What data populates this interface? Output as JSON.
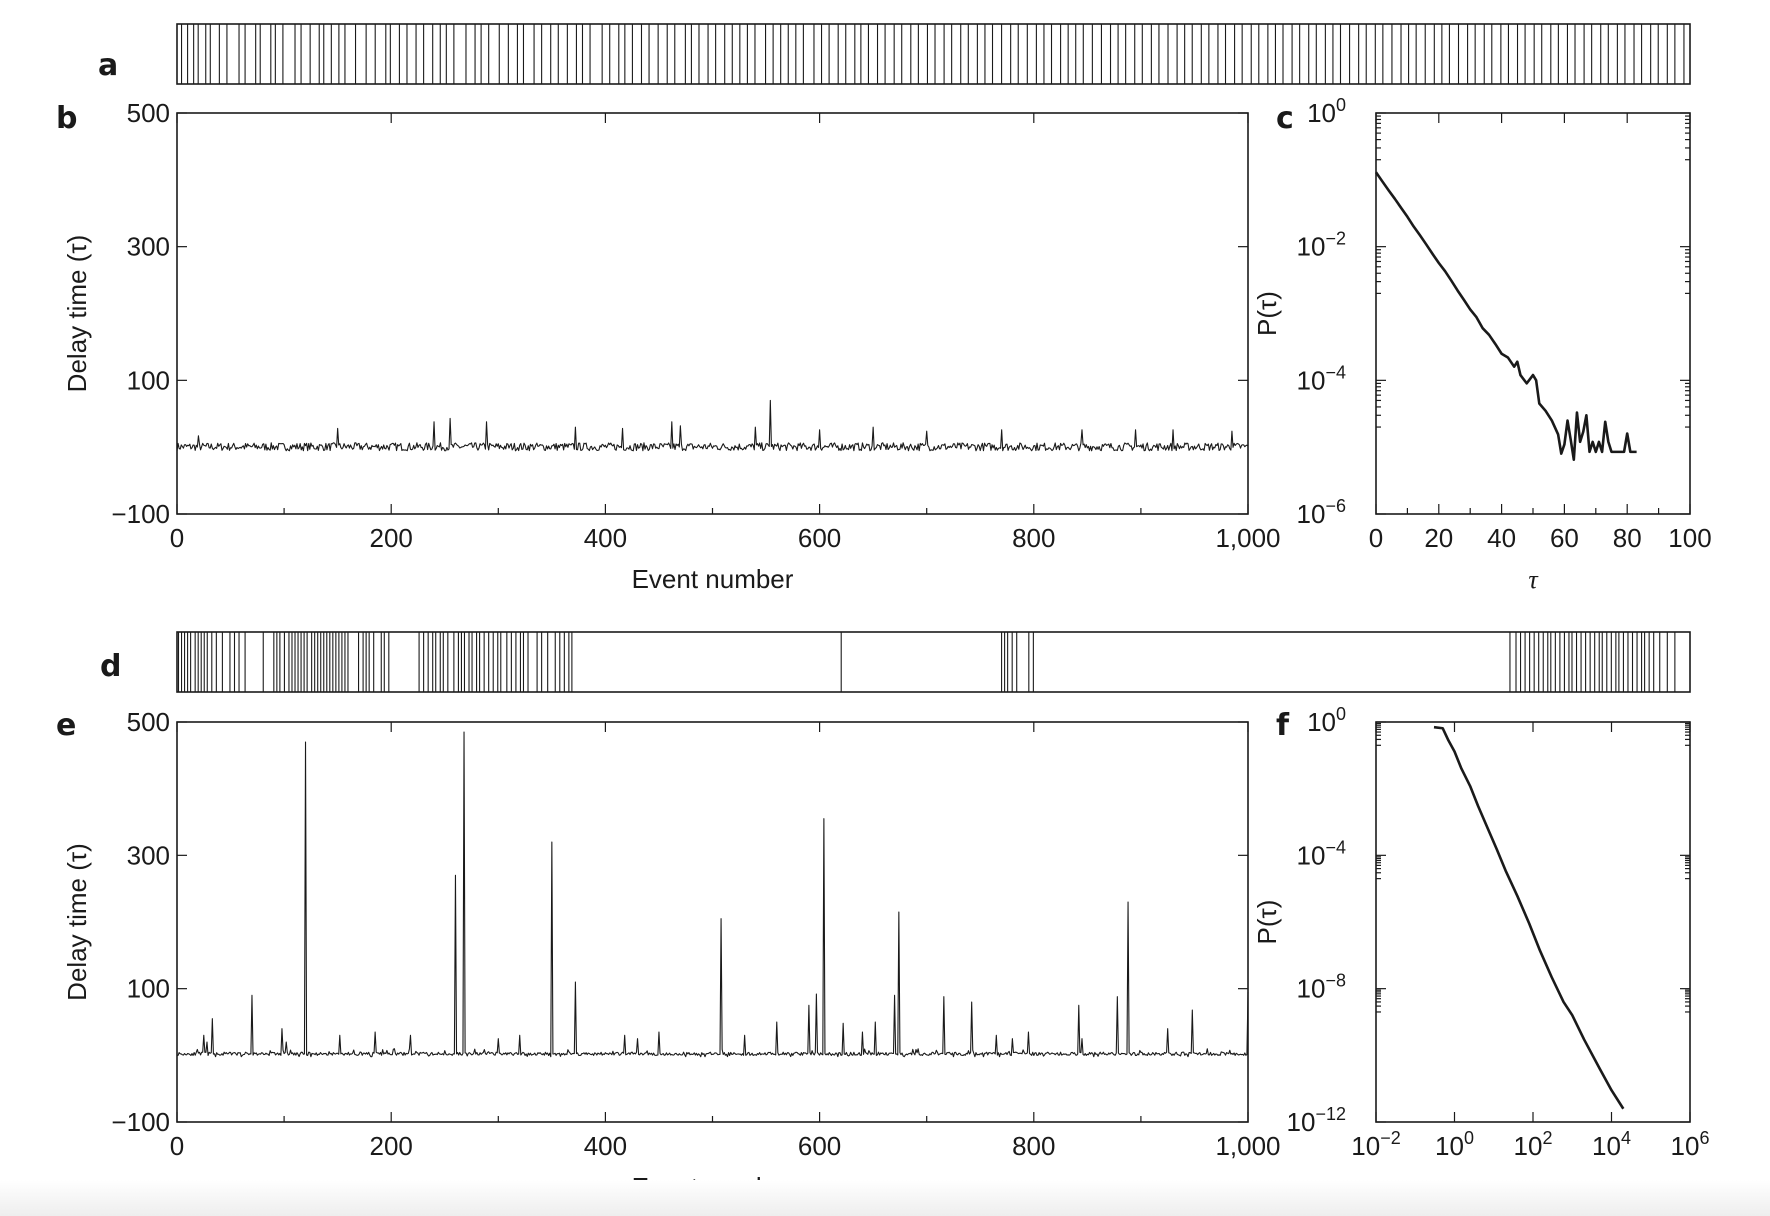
{
  "panels": {
    "a": "a",
    "b": "b",
    "c": "c",
    "d": "d",
    "e": "e",
    "f": "f"
  },
  "chart_data": [
    {
      "id": "a",
      "type": "event_raster",
      "xlim": [
        0,
        1000
      ],
      "events": [
        3,
        7,
        11,
        14,
        19,
        22,
        28,
        33,
        41,
        45,
        52,
        55,
        62,
        65,
        70,
        78,
        82,
        88,
        94,
        97,
        102,
        107,
        111,
        118,
        125,
        131,
        138,
        141,
        147,
        152,
        158,
        163,
        169,
        174,
        178,
        183,
        191,
        197,
        201,
        206,
        213,
        219,
        225,
        229,
        236,
        241,
        247,
        252,
        258,
        264,
        268,
        273,
        281,
        286,
        292,
        296,
        301,
        307,
        312,
        318,
        324,
        329,
        336,
        340,
        345,
        351,
        356,
        362,
        367,
        372,
        377,
        382,
        389,
        394,
        399,
        404,
        409,
        414,
        421,
        426,
        431,
        437,
        442,
        448,
        452,
        457,
        463,
        468,
        474,
        479,
        485,
        490,
        496,
        501,
        507,
        512,
        518,
        523,
        529,
        534,
        539,
        545,
        551,
        556,
        562,
        568,
        573,
        578,
        584,
        589,
        594,
        599,
        605,
        611,
        617,
        622,
        627,
        633,
        638,
        644,
        649,
        655,
        661,
        666,
        671,
        677,
        682,
        688,
        693,
        699,
        704,
        710,
        715,
        721,
        726,
        731,
        737,
        742,
        748,
        753,
        759,
        764,
        769,
        775,
        781,
        786,
        792,
        797,
        803,
        809,
        814,
        819,
        825,
        831,
        836,
        841,
        847,
        853,
        858,
        864,
        869,
        875,
        880,
        886,
        891,
        897,
        902,
        908,
        913,
        919,
        924,
        930,
        935,
        941,
        946,
        952,
        957,
        963,
        968,
        974,
        979,
        985,
        990,
        996
      ]
    },
    {
      "id": "b",
      "type": "line",
      "xlabel": "Event number",
      "ylabel": "Delay time (τ)",
      "xlim": [
        0,
        1000
      ],
      "ylim": [
        -100,
        500
      ],
      "xticks": [
        0,
        200,
        400,
        600,
        800,
        1000
      ],
      "xtick_labels": [
        "0",
        "200",
        "400",
        "600",
        "800",
        "1,000"
      ],
      "yticks": [
        -100,
        100,
        300,
        500
      ],
      "ytick_labels": [
        "−100",
        "100",
        "300",
        "500"
      ],
      "baseline": 0,
      "noise": 12,
      "seed": 7,
      "spikes": [
        [
          20,
          17
        ],
        [
          150,
          28
        ],
        [
          240,
          38
        ],
        [
          255,
          43
        ],
        [
          289,
          38
        ],
        [
          372,
          30
        ],
        [
          416,
          28
        ],
        [
          462,
          38
        ],
        [
          470,
          32
        ],
        [
          540,
          30
        ],
        [
          554,
          70
        ],
        [
          600,
          26
        ],
        [
          650,
          30
        ],
        [
          700,
          24
        ],
        [
          770,
          26
        ],
        [
          845,
          26
        ],
        [
          895,
          26
        ],
        [
          930,
          26
        ],
        [
          985,
          24
        ]
      ]
    },
    {
      "id": "c",
      "type": "line",
      "xlabel": "τ",
      "ylabel": "P(τ)",
      "yscale": "log",
      "xlim": [
        0,
        100
      ],
      "ylim": [
        1e-06,
        1
      ],
      "xticks": [
        0,
        20,
        40,
        60,
        80,
        100
      ],
      "xtick_labels": [
        "0",
        "20",
        "40",
        "60",
        "80",
        "100"
      ],
      "yticks": [
        1e-06,
        0.0001,
        0.01,
        1
      ],
      "ytick_labels": [
        "10",
        "10",
        "10",
        "10"
      ],
      "ytick_exponents": [
        "−6",
        "−4",
        "−2",
        "0"
      ],
      "x": [
        0,
        2,
        4,
        6,
        8,
        10,
        12,
        14,
        16,
        18,
        20,
        22,
        24,
        26,
        28,
        30,
        32,
        34,
        36,
        38,
        40,
        42,
        44,
        45,
        46,
        48,
        50,
        51,
        52,
        54,
        56,
        58,
        59,
        60,
        61,
        62,
        63,
        64,
        65,
        66,
        67,
        68,
        69,
        70,
        71,
        72,
        73,
        74,
        75,
        76,
        77,
        78,
        79,
        80,
        81,
        82,
        83
      ],
      "y": [
        0.13,
        0.095,
        0.07,
        0.052,
        0.038,
        0.028,
        0.02,
        0.0148,
        0.0108,
        0.0078,
        0.0057,
        0.0043,
        0.0031,
        0.0022,
        0.0016,
        0.00115,
        0.00088,
        0.0006,
        0.00048,
        0.00035,
        0.00025,
        0.00022,
        0.00016,
        0.00019,
        0.00012,
        9e-05,
        0.00012,
        0.0001,
        4.5e-05,
        3.5e-05,
        2.5e-05,
        1.55e-05,
        8e-06,
        1.1e-05,
        2.5e-05,
        1.3e-05,
        6.5e-06,
        3.3e-05,
        1.2e-05,
        1.7e-05,
        3e-05,
        8.5e-06,
        1.2e-05,
        8.5e-06,
        1.2e-05,
        8.5e-06,
        2.4e-05,
        1.2e-05,
        8.5e-06,
        8.5e-06,
        8.5e-06,
        8.5e-06,
        8.5e-06,
        1.6e-05,
        8.5e-06,
        8.5e-06,
        8.5e-06
      ]
    },
    {
      "id": "d",
      "type": "event_raster",
      "xlim": [
        0,
        1000
      ],
      "events": [
        1,
        3,
        5,
        7,
        9,
        12,
        14,
        16,
        18,
        20,
        23,
        26,
        30,
        35,
        38,
        41,
        45,
        57,
        64,
        66,
        68,
        71,
        74,
        76,
        78,
        80,
        82,
        84,
        86,
        89,
        91,
        93,
        95,
        97,
        99,
        101,
        103,
        105,
        107,
        109,
        111,
        113,
        120,
        123,
        125,
        127,
        130,
        135,
        137,
        140,
        160,
        163,
        166,
        169,
        171,
        174,
        176,
        179,
        183,
        186,
        188,
        190,
        193,
        195,
        198,
        200,
        203,
        206,
        209,
        212,
        214,
        218,
        221,
        224,
        227,
        229,
        232,
        238,
        241,
        245,
        250,
        253,
        256,
        259,
        261,
        439,
        545,
        547,
        549,
        552,
        555,
        563,
        566,
        881,
        885,
        888,
        891,
        894,
        897,
        900,
        903,
        906,
        908,
        911,
        914,
        917,
        920,
        922,
        925,
        928,
        931,
        934,
        937,
        940,
        942,
        945,
        948,
        951,
        953,
        956,
        959,
        962,
        965,
        968,
        970,
        973,
        976,
        980,
        985,
        990
      ]
    },
    {
      "id": "e",
      "type": "line",
      "xlabel": "Event number",
      "ylabel": "Delay time (τ)",
      "xlim": [
        0,
        1000
      ],
      "ylim": [
        -100,
        500
      ],
      "xticks": [
        0,
        200,
        400,
        600,
        800,
        1000
      ],
      "xtick_labels": [
        "0",
        "200",
        "400",
        "600",
        "800",
        "1,000"
      ],
      "yticks": [
        -100,
        100,
        300,
        500
      ],
      "ytick_labels": [
        "−100",
        "100",
        "300",
        "500"
      ],
      "baseline": 2,
      "noise": 5,
      "seed": 11,
      "spikes": [
        [
          25,
          30
        ],
        [
          28,
          20
        ],
        [
          33,
          55
        ],
        [
          70,
          90
        ],
        [
          98,
          40
        ],
        [
          102,
          20
        ],
        [
          120,
          470
        ],
        [
          152,
          30
        ],
        [
          185,
          35
        ],
        [
          218,
          30
        ],
        [
          260,
          270
        ],
        [
          268,
          485
        ],
        [
          300,
          25
        ],
        [
          320,
          30
        ],
        [
          350,
          320
        ],
        [
          372,
          110
        ],
        [
          418,
          30
        ],
        [
          430,
          25
        ],
        [
          450,
          35
        ],
        [
          508,
          205
        ],
        [
          530,
          30
        ],
        [
          560,
          50
        ],
        [
          590,
          75
        ],
        [
          597,
          92
        ],
        [
          604,
          355
        ],
        [
          622,
          48
        ],
        [
          640,
          35
        ],
        [
          652,
          50
        ],
        [
          670,
          90
        ],
        [
          674,
          215
        ],
        [
          716,
          88
        ],
        [
          742,
          80
        ],
        [
          765,
          30
        ],
        [
          780,
          25
        ],
        [
          795,
          35
        ],
        [
          842,
          75
        ],
        [
          845,
          25
        ],
        [
          878,
          88
        ],
        [
          888,
          230
        ],
        [
          925,
          40
        ],
        [
          948,
          68
        ],
        [
          1000,
          95
        ]
      ]
    },
    {
      "id": "f",
      "type": "line",
      "xlabel": "τ",
      "ylabel": "P(τ)",
      "xscale": "log",
      "yscale": "log",
      "xlim": [
        0.01,
        1000000
      ],
      "ylim": [
        1e-12,
        1
      ],
      "xticks": [
        0.01,
        1,
        100,
        10000,
        1000000
      ],
      "xtick_labels": [
        "10",
        "10",
        "10",
        "10",
        "10"
      ],
      "xtick_exponents": [
        "−2",
        "0",
        "2",
        "4",
        "6"
      ],
      "yticks": [
        1e-12,
        1e-08,
        0.0001,
        1
      ],
      "ytick_labels": [
        "10",
        "10",
        "10",
        "10"
      ],
      "ytick_exponents": [
        "−12",
        "−8",
        "−4",
        "0"
      ],
      "x": [
        0.3,
        0.5,
        0.7,
        1,
        1.5,
        2.5,
        4,
        7,
        12,
        20,
        40,
        80,
        150,
        300,
        600,
        1000,
        2000,
        5000,
        10000,
        20000
      ],
      "y": [
        0.7,
        0.65,
        0.28,
        0.13,
        0.04,
        0.012,
        0.003,
        0.00065,
        0.00015,
        3.5e-05,
        6e-06,
        9e-07,
        1.4e-07,
        2.2e-08,
        4e-09,
        1.6e-09,
        3e-10,
        4e-11,
        9e-12,
        2.5e-12
      ]
    }
  ]
}
